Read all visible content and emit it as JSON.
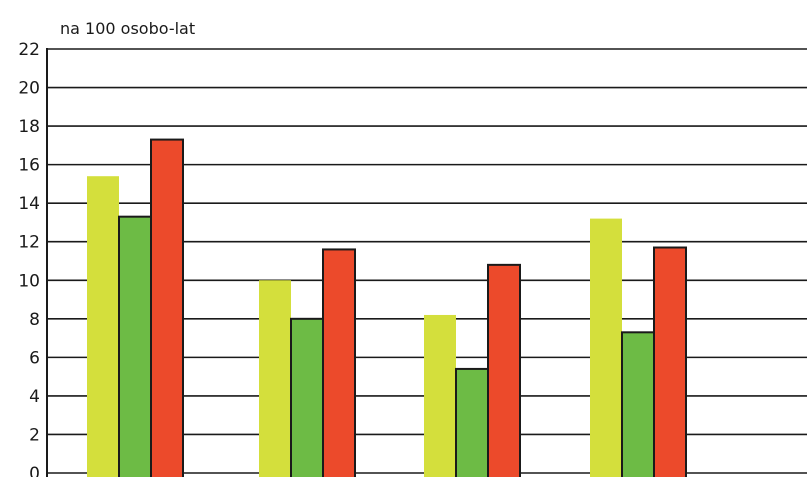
{
  "chart_data": {
    "type": "bar",
    "ylabel": "na 100 osobo-lat",
    "ylim": [
      0,
      22
    ],
    "yticks": [
      {
        "value": 0,
        "label": "0"
      },
      {
        "value": 2,
        "label": "2"
      },
      {
        "value": 4,
        "label": "4"
      },
      {
        "value": 6,
        "label": "6"
      },
      {
        "value": 8,
        "label": "8"
      },
      {
        "value": 10,
        "label": "10"
      },
      {
        "value": 12,
        "label": "12"
      },
      {
        "value": 14,
        "label": "14"
      },
      {
        "value": 16,
        "label": "16"
      },
      {
        "value": 18,
        "label": "18"
      },
      {
        "value": 20,
        "label": "20"
      },
      {
        "value": 22,
        "label": "22"
      }
    ],
    "categories": [
      "",
      "",
      "",
      ""
    ],
    "series": [
      {
        "color": "#d4df3c",
        "values": [
          15.4,
          10.0,
          8.2,
          13.2
        ]
      },
      {
        "color": "#6dbb45",
        "values": [
          13.3,
          8.0,
          5.4,
          7.3
        ]
      },
      {
        "color": "#ec4a2b",
        "values": [
          17.3,
          11.6,
          10.8,
          11.7
        ]
      }
    ],
    "grid": true,
    "legend": "none"
  }
}
